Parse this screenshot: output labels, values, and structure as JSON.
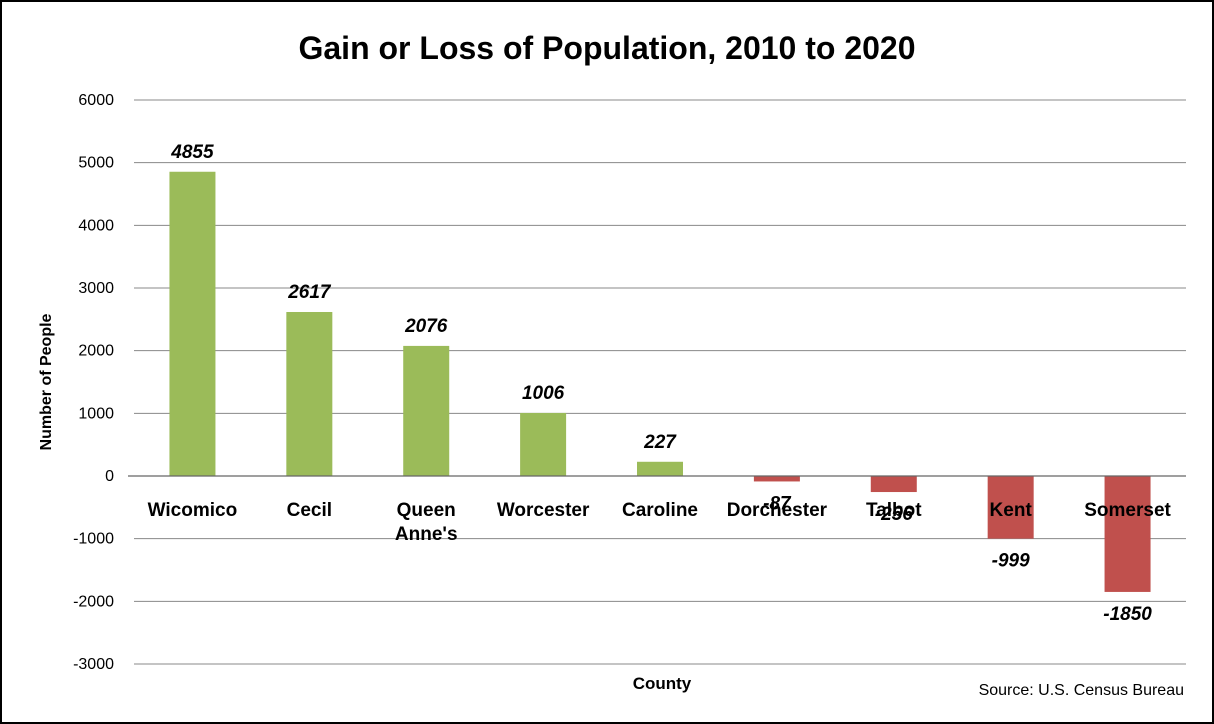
{
  "chart_data": {
    "type": "bar",
    "title": "Gain or Loss of Population, 2010 to 2020",
    "xlabel": "County",
    "ylabel": "Number of People",
    "source": "Source: U.S. Census Bureau",
    "categories": [
      "Wicomico",
      "Cecil",
      "Queen Anne's",
      "Worcester",
      "Caroline",
      "Dorchester",
      "Talbot",
      "Kent",
      "Somerset"
    ],
    "values": [
      4855,
      2617,
      2076,
      1006,
      227,
      -87,
      -256,
      -999,
      -1850
    ],
    "data_labels": [
      "4855",
      "2617",
      "2076",
      "1006",
      "227",
      "-87",
      "-256",
      "-999",
      "-1850"
    ],
    "y_ticks": [
      "6000",
      "5000",
      "4000",
      "3000",
      "2000",
      "1000",
      "0",
      "-1000",
      "-2000",
      "-3000"
    ],
    "ylim": [
      -3000,
      6000
    ],
    "grid": true,
    "legend": "none",
    "colors": {
      "positive": "#9BBB59",
      "negative": "#C0504D",
      "grid": "#888888"
    }
  }
}
